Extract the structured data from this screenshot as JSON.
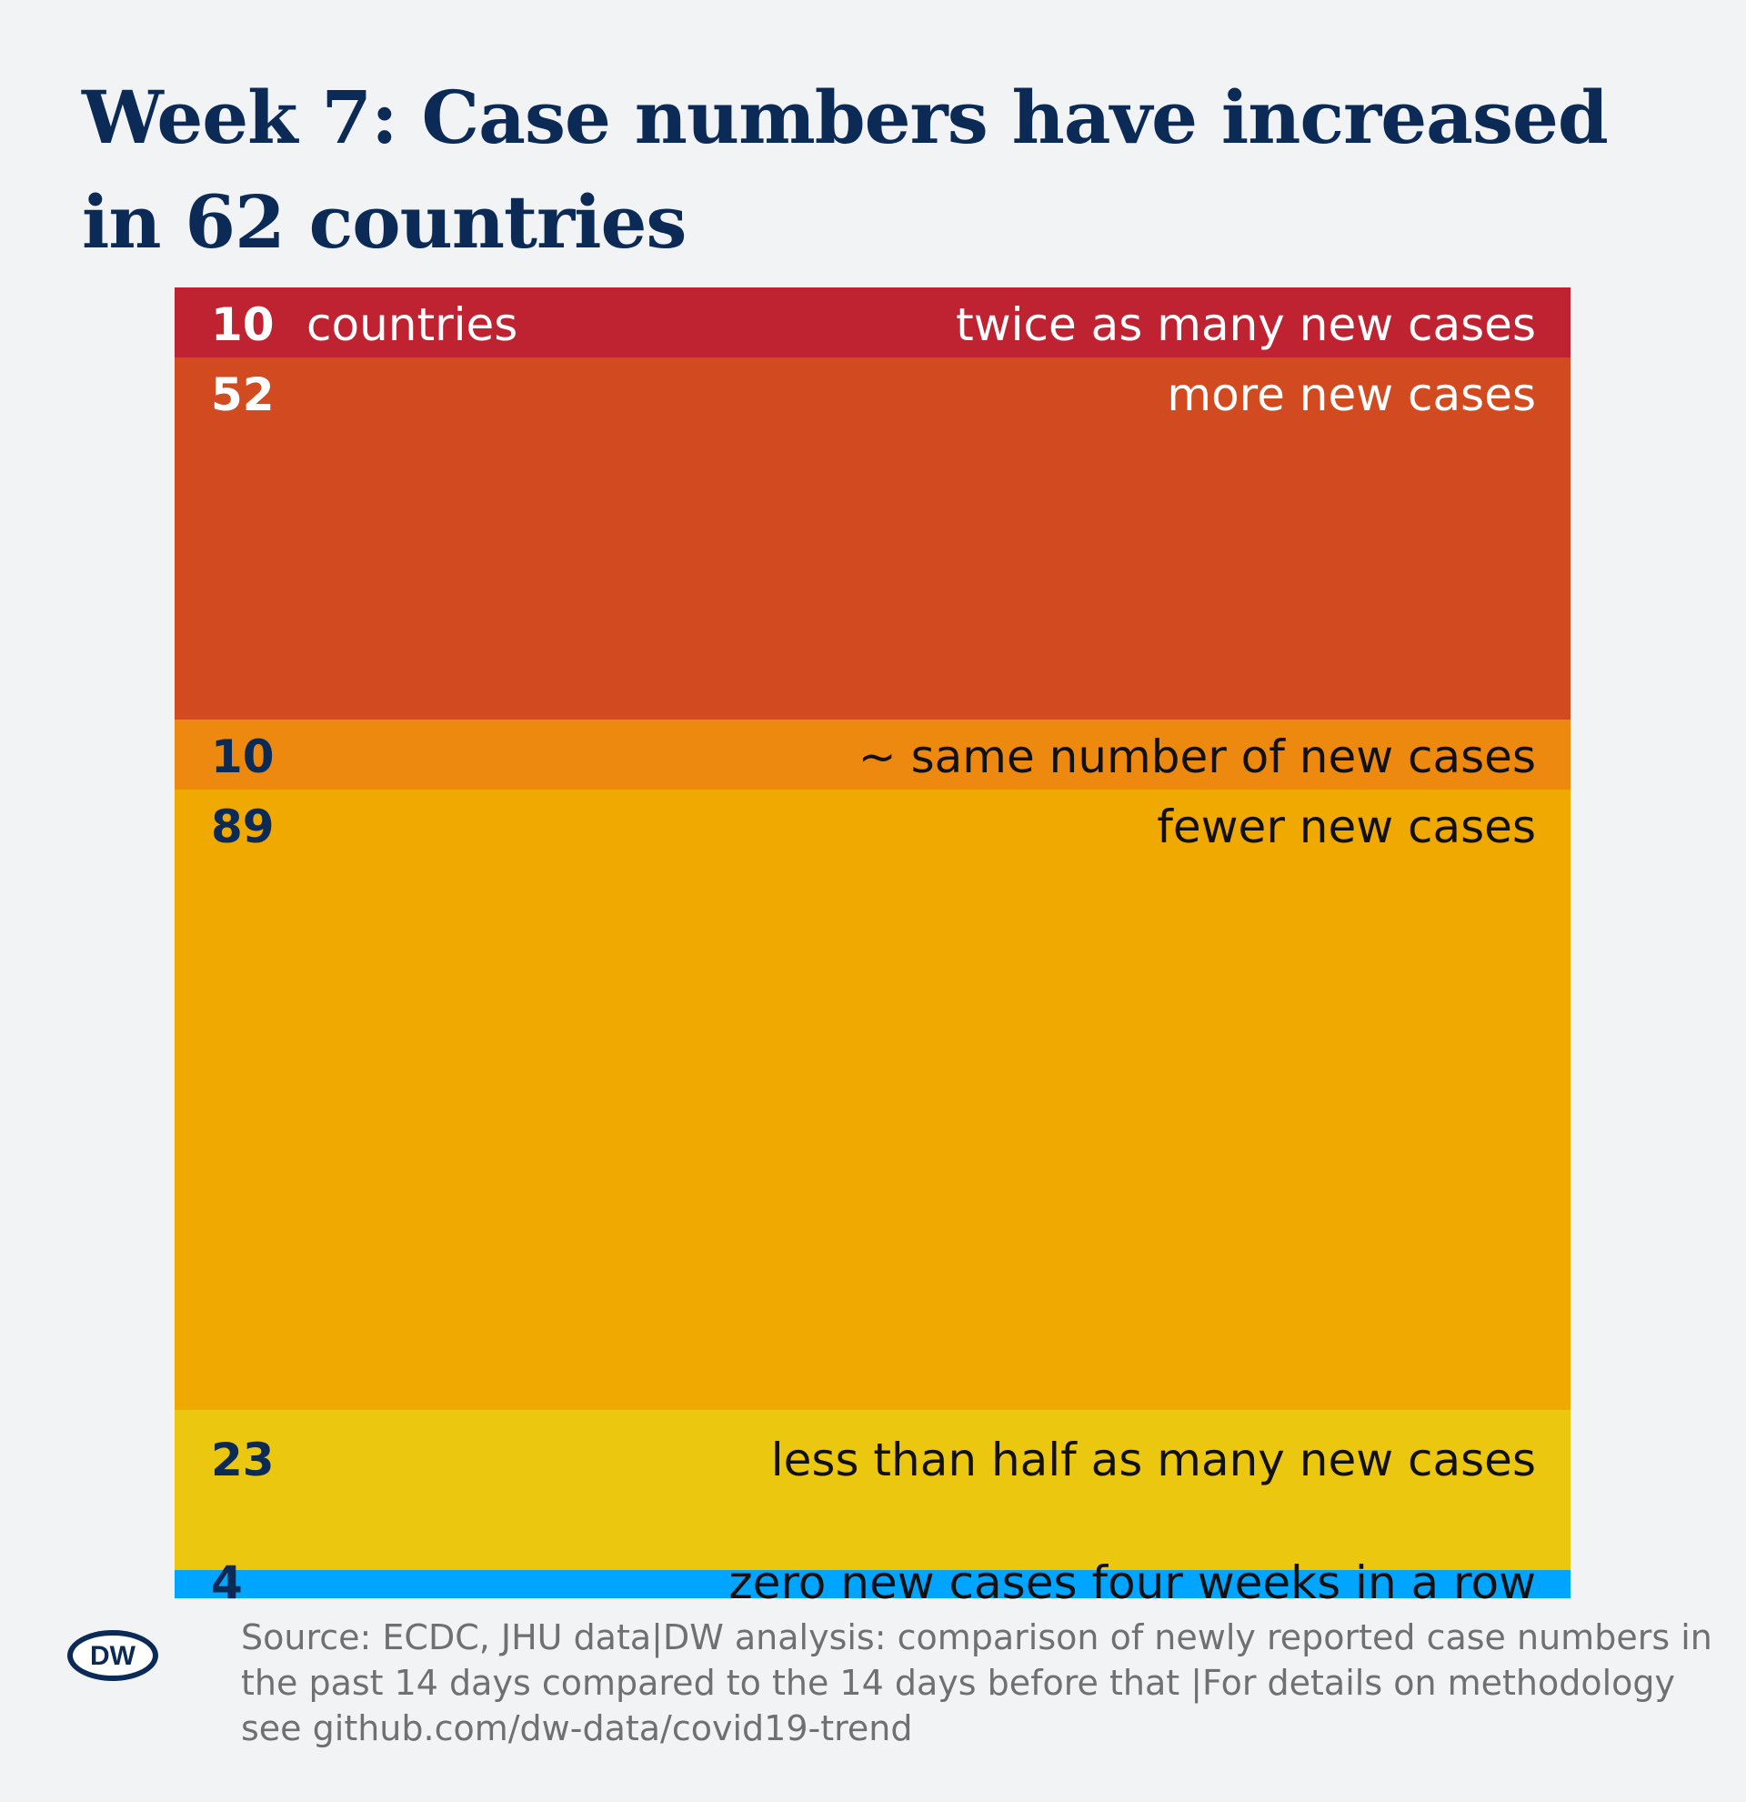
{
  "title": "Week 7: Case numbers have increased in 62 countries",
  "chart_data": {
    "type": "bar",
    "orientation": "stacked-vertical",
    "title": "Week 7: Case numbers have increased in 62 countries",
    "unit_label": "countries",
    "categories": [
      "twice as many new cases",
      "more new cases",
      "~ same number of new cases",
      "fewer new cases",
      "less than half as many new cases",
      "zero new cases four weeks in a row"
    ],
    "values": [
      10,
      52,
      10,
      89,
      23,
      4
    ],
    "colors": [
      "#bf2230",
      "#d24a20",
      "#ec890e",
      "#efa900",
      "#ecc70f",
      "#00a5ff"
    ]
  },
  "source": "Source: ECDC, JHU data|DW analysis: comparison of newly reported case numbers in the past 14 days compared to the 14 days before that |For details on methodology see github.com/dw-data/covid19-trend",
  "logo": {
    "text": "DW"
  }
}
